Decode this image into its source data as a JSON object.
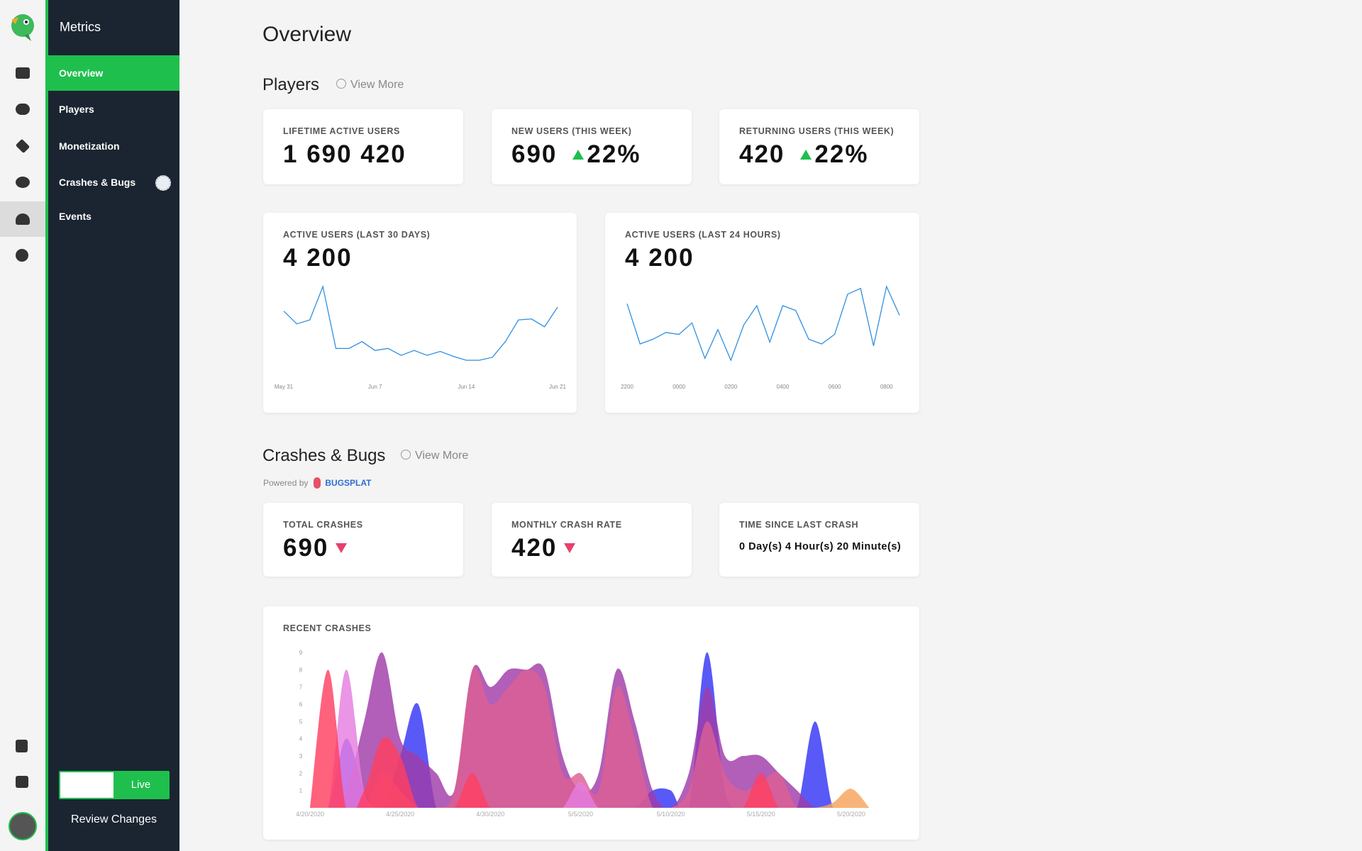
{
  "sidebar": {
    "title": "Metrics",
    "items": [
      "Overview",
      "Players",
      "Monetization",
      "Crashes & Bugs",
      "Events"
    ],
    "toggle": "Live",
    "review": "Review Changes"
  },
  "page_title": "Overview",
  "players": {
    "heading": "Players",
    "view_more": "View More",
    "cards": [
      {
        "label": "LIFETIME ACTIVE USERS",
        "value": "1 690 420"
      },
      {
        "label": "NEW USERS (THIS WEEK)",
        "value": "690",
        "change": "22%"
      },
      {
        "label": "RETURNING USERS (THIS WEEK)",
        "value": "420",
        "change": "22%"
      }
    ],
    "chart_cards": [
      {
        "label": "ACTIVE USERS (LAST 30 DAYS)",
        "value": "4 200"
      },
      {
        "label": "ACTIVE USERS (LAST 24 HOURS)",
        "value": "4 200"
      }
    ]
  },
  "crashes": {
    "heading": "Crashes & Bugs",
    "view_more": "View More",
    "powered_by": "Powered by",
    "brand": "BUGSPLAT",
    "cards": [
      {
        "label": "TOTAL CRASHES",
        "value": "690"
      },
      {
        "label": "MONTHLY CRASH RATE",
        "value": "420"
      },
      {
        "label": "TIME SINCE LAST CRASH",
        "value": "0 Day(s) 4 Hour(s) 20 Minute(s)"
      }
    ],
    "chart_label": "RECENT CRASHES"
  },
  "chart_data": [
    {
      "type": "line",
      "color": "#2f8fe0",
      "categories": [
        "May 31",
        null,
        null,
        null,
        null,
        null,
        null,
        "Jun 7",
        null,
        null,
        null,
        null,
        null,
        null,
        "Jun 14",
        null,
        null,
        null,
        null,
        null,
        null,
        "Jun 21"
      ],
      "values": [
        58,
        45,
        49,
        83,
        20,
        20,
        27,
        18,
        20,
        13,
        18,
        13,
        17,
        12,
        8,
        8,
        11,
        27,
        49,
        50,
        42,
        62
      ]
    },
    {
      "type": "line",
      "color": "#2f8fe0",
      "categories": [
        "2200",
        null,
        null,
        null,
        "0000",
        null,
        null,
        null,
        "0200",
        null,
        null,
        null,
        "0400",
        null,
        null,
        null,
        "0600",
        null,
        null,
        null,
        "0800",
        null
      ],
      "values": [
        62,
        20,
        25,
        32,
        30,
        42,
        5,
        35,
        3,
        40,
        60,
        22,
        60,
        55,
        25,
        20,
        30,
        72,
        78,
        18,
        80,
        50
      ]
    },
    {
      "type": "area",
      "categories": [
        "4/20/2020",
        null,
        null,
        null,
        null,
        "4/25/2020",
        null,
        null,
        null,
        null,
        "4/30/2020",
        null,
        null,
        null,
        null,
        "5/5/2020",
        null,
        null,
        null,
        null,
        "5/10/2020",
        null,
        null,
        null,
        null,
        "5/15/2020",
        null,
        null,
        null,
        null,
        "5/20/2020",
        null
      ],
      "ylim": [
        0,
        9
      ],
      "yticks": [
        1,
        2,
        3,
        4,
        5,
        6,
        7,
        8,
        9
      ],
      "series": [
        {
          "color": "#3535f5",
          "values": [
            0,
            0,
            4,
            1,
            0,
            3,
            6,
            0,
            0,
            0,
            0,
            0,
            0,
            0,
            0,
            0,
            0,
            0,
            0,
            1,
            1,
            0,
            9,
            1,
            0,
            0,
            0,
            0,
            5,
            0,
            0,
            0
          ]
        },
        {
          "color": "#a03ca8",
          "values": [
            0,
            0,
            1,
            5,
            9,
            4,
            3,
            2,
            1,
            8,
            7,
            8,
            8,
            8,
            3,
            1,
            2,
            8,
            5,
            1,
            0,
            2,
            7,
            3,
            3,
            3,
            2,
            1,
            0,
            0,
            0,
            0
          ]
        },
        {
          "color": "#dc5f94",
          "values": [
            0,
            0,
            0,
            0,
            2,
            1,
            0,
            0,
            1,
            8,
            6,
            7,
            8,
            7,
            2,
            2,
            1,
            7,
            4,
            0,
            0,
            1,
            5,
            2,
            1,
            1.5,
            2,
            0,
            0,
            0,
            0,
            0
          ]
        },
        {
          "color": "#e57ee0",
          "values": [
            0,
            0,
            8,
            1,
            0,
            0,
            0,
            0,
            0,
            0,
            0,
            0,
            0,
            0,
            0,
            1.5,
            0,
            0,
            0,
            0,
            0,
            0,
            0,
            0,
            0,
            0,
            0,
            0,
            0,
            0,
            0,
            0
          ]
        },
        {
          "color": "#ff4060",
          "values": [
            0,
            8,
            0,
            1,
            4,
            3,
            0,
            0,
            0,
            2,
            0,
            0,
            0,
            0,
            0,
            0,
            0,
            0,
            0,
            0,
            0,
            0,
            0,
            0,
            0,
            2,
            0,
            0,
            0,
            0,
            0,
            0
          ]
        },
        {
          "color": "#f7a45a",
          "values": [
            0,
            0,
            0,
            0,
            0,
            0,
            0,
            0,
            0,
            0,
            0,
            0,
            0,
            0,
            0,
            0,
            0,
            0,
            0,
            0,
            0,
            0,
            0,
            0,
            0,
            0,
            0,
            0,
            0,
            0.3,
            1.1,
            0
          ]
        }
      ]
    }
  ]
}
